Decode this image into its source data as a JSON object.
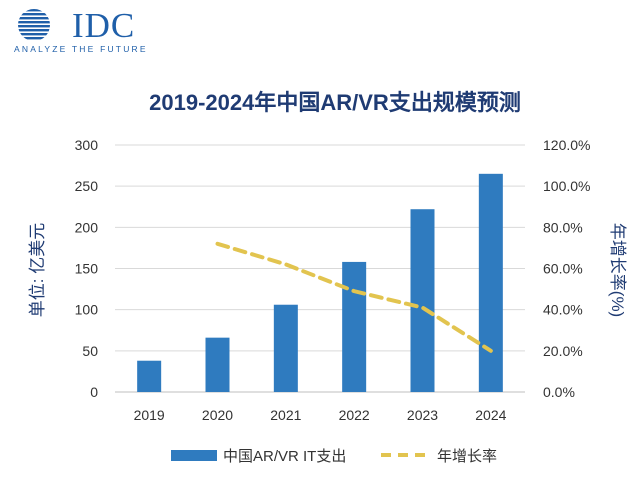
{
  "logo": {
    "word": "IDC",
    "tagline": "ANALYZE THE FUTURE"
  },
  "colors": {
    "bar": "#2f7bbf",
    "line": "#e2c44f",
    "text": "#333333",
    "title": "#1f3b73",
    "grid": "#d9d9d9",
    "logo": "#1f5fa9"
  },
  "chart_data": {
    "type": "bar",
    "title": "2019-2024年中国AR/VR支出规模预测",
    "categories": [
      "2019",
      "2020",
      "2021",
      "2022",
      "2023",
      "2024"
    ],
    "ylabel": "单位: 亿美元",
    "ylim": [
      0,
      300
    ],
    "yticks": [
      "0",
      "50",
      "100",
      "150",
      "200",
      "250",
      "300"
    ],
    "y2label": "年增长率(%)",
    "y2lim": [
      0,
      120
    ],
    "y2ticks": [
      "0.0%",
      "20.0%",
      "40.0%",
      "60.0%",
      "80.0%",
      "100.0%",
      "120.0%"
    ],
    "grid": true,
    "legend_position": "bottom",
    "series": [
      {
        "name": "中国AR/VR IT支出",
        "type": "bar",
        "axis": "left",
        "values": [
          38,
          66,
          106,
          158,
          222,
          265
        ]
      },
      {
        "name": "年增长率",
        "type": "line",
        "style": "dashed",
        "axis": "right",
        "values": [
          null,
          72,
          62,
          49,
          41,
          20
        ]
      }
    ]
  }
}
